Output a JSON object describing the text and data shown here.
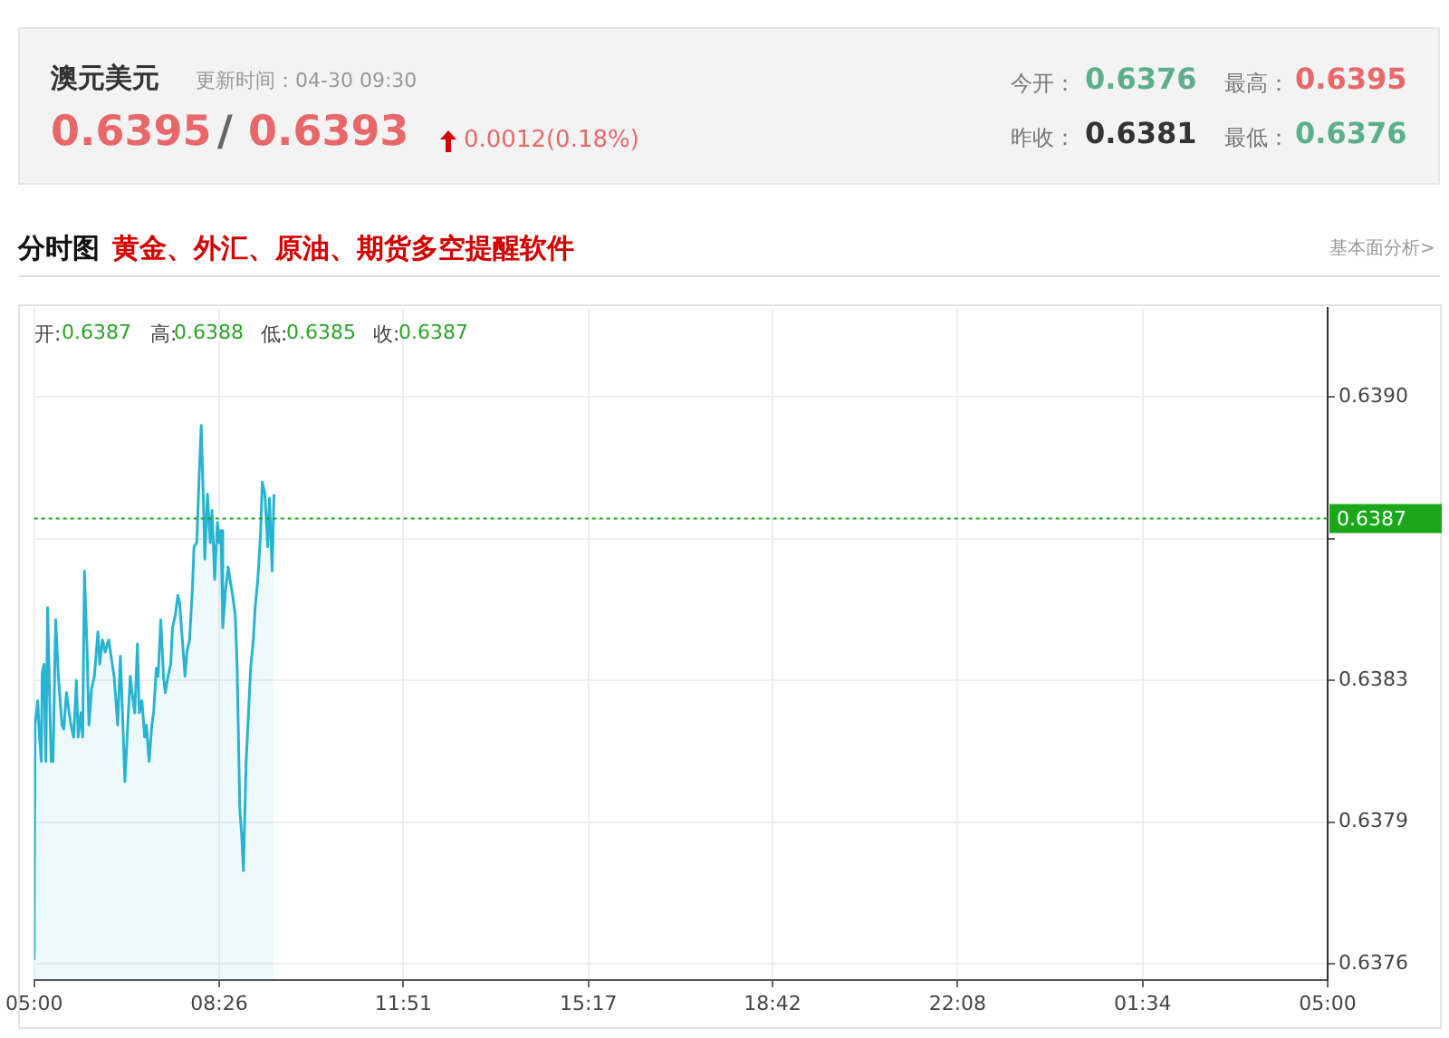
{
  "chart_data": {
    "type": "area",
    "title": "澳元美元",
    "subtitle": "更新时间：04-30 09:30",
    "annotations": [
      "0.6395",
      "/",
      "0.6393",
      "0.0012(0.18%)",
      "今开：",
      "0.6376",
      "最高：",
      "0.6395",
      "昨收：",
      "0.6381",
      "最低：",
      "0.6376",
      "分时图",
      "黄金、外汇、原油、期货多空提醒软件",
      "基本面分析>",
      "开:",
      "0.6387",
      "高:",
      "0.6388",
      "低:",
      "0.6385",
      "收:",
      "0.6387"
    ],
    "series": [
      {
        "color": "#29b3d3",
        "x": [
          "--04-30T05:00",
          "--04-30T05:01",
          "--04-30T05:04",
          "--04-30T05:06",
          "--04-30T05:08",
          "--04-30T05:09",
          "--04-30T05:11",
          "--04-30T05:13",
          "--04-30T05:15",
          "--04-30T05:17",
          "--04-30T05:19",
          "--04-30T05:21",
          "--04-30T05:24",
          "--04-30T05:27",
          "--04-30T05:31",
          "--04-30T05:33",
          "--04-30T05:36",
          "--04-30T05:39",
          "--04-30T05:41",
          "--04-30T05:44",
          "--04-30T05:47",
          "--04-30T05:49",
          "--04-30T05:52",
          "--04-30T05:54",
          "--04-30T05:56",
          "--04-30T05:59",
          "--04-30T06:01",
          "--04-30T06:04",
          "--04-30T06:07",
          "--04-30T06:11",
          "--04-30T06:13",
          "--04-30T06:16",
          "--04-30T06:19",
          "--04-30T06:23",
          "--04-30T06:27",
          "--04-30T06:29",
          "--04-30T06:33",
          "--04-30T06:36",
          "--04-30T06:39",
          "--04-30T06:41",
          "--04-30T06:44",
          "--04-30T06:47",
          "--04-30T06:49",
          "--04-30T06:52",
          "--04-30T06:55",
          "--04-30T06:57",
          "--04-30T07:00",
          "--04-30T07:03",
          "--04-30T07:05",
          "--04-30T07:08",
          "--04-30T07:11",
          "--04-30T07:13",
          "--04-30T07:16",
          "--04-30T07:18",
          "--04-30T07:21",
          "--04-30T07:24",
          "--04-30T07:26",
          "--04-30T07:29",
          "--04-30T07:32",
          "--04-30T07:34",
          "--04-30T07:37",
          "--04-30T07:40",
          "--04-30T07:42",
          "--04-30T07:45",
          "--04-30T07:48",
          "--04-30T07:50",
          "--04-30T07:53",
          "--04-30T07:56",
          "--04-30T07:58",
          "--04-30T08:01",
          "--04-30T08:04",
          "--04-30T08:06",
          "--04-30T08:09",
          "--04-30T08:10",
          "--04-30T08:13",
          "--04-30T08:16",
          "--04-30T08:18",
          "--04-30T08:21",
          "--04-30T08:24",
          "--04-30T08:26",
          "--04-30T08:28",
          "--04-30T08:30",
          "--04-30T08:33",
          "--04-30T08:36",
          "--04-30T08:38",
          "--04-30T08:41",
          "--04-30T08:44",
          "--04-30T08:46",
          "--04-30T08:49",
          "--04-30T08:51",
          "--04-30T08:53",
          "--04-30T08:56",
          "--04-30T08:58",
          "--04-30T09:01",
          "--04-30T09:04",
          "--04-30T09:06",
          "--04-30T09:09",
          "--04-30T09:12",
          "--04-30T09:14",
          "--04-30T09:17",
          "--04-30T09:20",
          "--04-30T09:22",
          "--04-30T09:25",
          "--04-30T09:27"
        ],
        "values": [
          0.63761,
          0.63819,
          0.63825,
          0.63816,
          0.6381,
          0.63832,
          0.63834,
          0.6381,
          0.63848,
          0.63828,
          0.6381,
          0.6381,
          0.63845,
          0.63831,
          0.63819,
          0.63818,
          0.63827,
          0.63822,
          0.63819,
          0.63816,
          0.6383,
          0.63816,
          0.63822,
          0.63816,
          0.63857,
          0.63837,
          0.63819,
          0.63828,
          0.63831,
          0.63842,
          0.63834,
          0.6384,
          0.63837,
          0.6384,
          0.63834,
          0.63831,
          0.63819,
          0.63836,
          0.63818,
          0.63805,
          0.63818,
          0.63831,
          0.63827,
          0.63822,
          0.63839,
          0.63822,
          0.63825,
          0.63816,
          0.63819,
          0.6381,
          0.63819,
          0.63822,
          0.63833,
          0.63831,
          0.63845,
          0.63831,
          0.63827,
          0.63831,
          0.63834,
          0.63843,
          0.63846,
          0.63851,
          0.63849,
          0.6384,
          0.63831,
          0.63837,
          0.6384,
          0.63852,
          0.63863,
          0.63864,
          0.63882,
          0.63893,
          0.6387,
          0.6386,
          0.63876,
          0.63864,
          0.63872,
          0.63855,
          0.63869,
          0.63864,
          0.63867,
          0.63843,
          0.63852,
          0.63858,
          0.63855,
          0.63851,
          0.63846,
          0.63833,
          0.63798,
          0.63792,
          0.63783,
          0.6381,
          0.63819,
          0.63833,
          0.6384,
          0.63848,
          0.63855,
          0.63866,
          0.63879,
          0.63876,
          0.63863,
          0.63875,
          0.63857,
          0.63876
        ]
      }
    ],
    "xlim": [
      "--04-30T05:00",
      "--05-01T05:00"
    ],
    "xticks": [
      {
        "value": "--04-30T05:00",
        "label": "05:00"
      },
      {
        "value": "--04-30T08:26",
        "label": "08:26"
      },
      {
        "value": "--04-30T11:51",
        "label": "11:51"
      },
      {
        "value": "--04-30T15:17",
        "label": "15:17"
      },
      {
        "value": "--04-30T18:42",
        "label": "18:42"
      },
      {
        "value": "--04-30T22:08",
        "label": "22:08"
      },
      {
        "value": "--05-01T01:34",
        "label": "01:34"
      },
      {
        "value": "--05-01T05:00",
        "label": "05:00"
      }
    ],
    "ylim": [
      0.63756,
      0.63922
    ],
    "yticks": [
      {
        "value": 0.6376,
        "label": "0.6376"
      },
      {
        "value": 0.63795,
        "label": "0.6379"
      },
      {
        "value": 0.6383,
        "label": "0.6383"
      },
      {
        "value": 0.63865,
        "label": null
      },
      {
        "value": 0.639,
        "label": "0.6390"
      }
    ],
    "ref_lines": [
      {
        "axis": "y",
        "value": 0.6387,
        "label": "0.6387",
        "color": "#1aa81a",
        "line_style": "dotted"
      }
    ],
    "grid": true,
    "legend": false,
    "marker": "none"
  }
}
